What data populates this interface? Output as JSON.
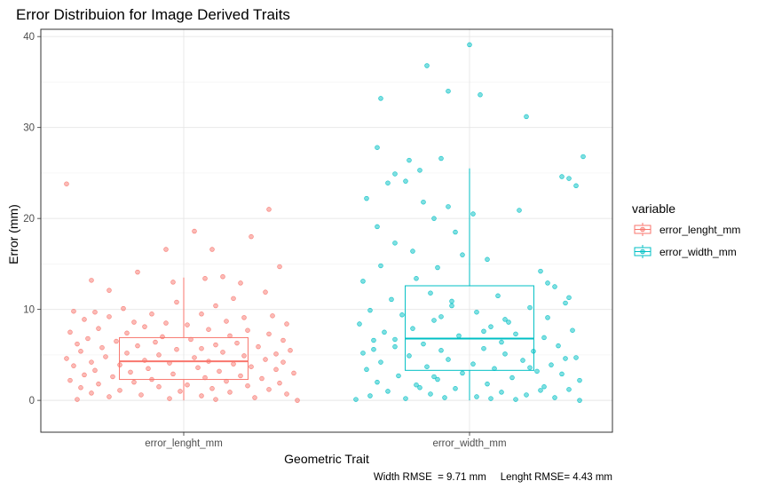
{
  "chart_data": {
    "type": "boxplot",
    "title": "Error Distribuion for Image Derived Traits",
    "xlabel": "Geometric Trait",
    "ylabel": "Error (mm)",
    "ylim": [
      -3.5,
      40.8
    ],
    "yticks": [
      0,
      10,
      20,
      30,
      40
    ],
    "categories": [
      "error_lenght_mm",
      "error_width_mm"
    ],
    "grid": true,
    "legend": {
      "title": "variable",
      "position": "right"
    },
    "caption": "Width RMSE  = 9.71 mm     Lenght RMSE= 4.43 mm",
    "series": [
      {
        "name": "error_lenght_mm",
        "color": "#F8766D",
        "box": {
          "whisker_low": 0.0,
          "q1": 2.3,
          "median": 4.3,
          "q3": 6.9,
          "whisker_high": 13.5
        },
        "points": [
          [
            -0.33,
            23.8
          ],
          [
            0.24,
            21.0
          ],
          [
            0.03,
            18.6
          ],
          [
            0.19,
            18.0
          ],
          [
            -0.05,
            16.6
          ],
          [
            0.08,
            16.6
          ],
          [
            -0.13,
            14.1
          ],
          [
            0.27,
            14.7
          ],
          [
            0.11,
            13.6
          ],
          [
            0.06,
            13.4
          ],
          [
            -0.26,
            13.2
          ],
          [
            -0.03,
            13.0
          ],
          [
            0.16,
            12.9
          ],
          [
            -0.21,
            12.1
          ],
          [
            0.23,
            11.9
          ],
          [
            0.14,
            11.2
          ],
          [
            -0.02,
            10.8
          ],
          [
            0.09,
            10.4
          ],
          [
            -0.17,
            10.1
          ],
          [
            -0.31,
            9.8
          ],
          [
            -0.25,
            9.7
          ],
          [
            -0.09,
            9.5
          ],
          [
            0.05,
            9.5
          ],
          [
            0.25,
            9.3
          ],
          [
            -0.21,
            9.2
          ],
          [
            0.17,
            9.1
          ],
          [
            -0.28,
            8.9
          ],
          [
            0.12,
            8.7
          ],
          [
            -0.14,
            8.6
          ],
          [
            -0.05,
            8.5
          ],
          [
            0.01,
            8.3
          ],
          [
            0.29,
            8.4
          ],
          [
            -0.11,
            8.1
          ],
          [
            -0.24,
            7.9
          ],
          [
            0.07,
            7.8
          ],
          [
            0.18,
            7.7
          ],
          [
            -0.32,
            7.5
          ],
          [
            -0.16,
            7.4
          ],
          [
            0.24,
            7.3
          ],
          [
            0.13,
            7.1
          ],
          [
            -0.06,
            7.0
          ],
          [
            -0.27,
            6.8
          ],
          [
            0.02,
            6.7
          ],
          [
            0.28,
            6.6
          ],
          [
            -0.19,
            6.5
          ],
          [
            -0.08,
            6.4
          ],
          [
            0.15,
            6.3
          ],
          [
            -0.3,
            6.2
          ],
          [
            0.09,
            6.1
          ],
          [
            -0.13,
            6.0
          ],
          [
            0.21,
            5.9
          ],
          [
            -0.23,
            5.8
          ],
          [
            0.05,
            5.7
          ],
          [
            -0.02,
            5.6
          ],
          [
            0.3,
            5.5
          ],
          [
            -0.29,
            5.4
          ],
          [
            0.11,
            5.3
          ],
          [
            -0.16,
            5.2
          ],
          [
            0.26,
            5.1
          ],
          [
            -0.07,
            5.0
          ],
          [
            0.17,
            4.9
          ],
          [
            -0.22,
            4.8
          ],
          [
            0.03,
            4.7
          ],
          [
            -0.33,
            4.6
          ],
          [
            0.23,
            4.5
          ],
          [
            -0.11,
            4.4
          ],
          [
            0.07,
            4.3
          ],
          [
            -0.26,
            4.2
          ],
          [
            0.28,
            4.2
          ],
          [
            -0.04,
            4.1
          ],
          [
            0.14,
            4.0
          ],
          [
            -0.18,
            3.9
          ],
          [
            -0.31,
            3.8
          ],
          [
            0.19,
            3.7
          ],
          [
            0.04,
            3.6
          ],
          [
            -0.1,
            3.5
          ],
          [
            0.26,
            3.4
          ],
          [
            -0.25,
            3.3
          ],
          [
            0.1,
            3.2
          ],
          [
            -0.15,
            3.1
          ],
          [
            0.31,
            3.0
          ],
          [
            -0.03,
            2.9
          ],
          [
            -0.28,
            2.8
          ],
          [
            0.16,
            2.7
          ],
          [
            -0.2,
            2.6
          ],
          [
            0.06,
            2.5
          ],
          [
            0.22,
            2.4
          ],
          [
            -0.09,
            2.3
          ],
          [
            -0.32,
            2.2
          ],
          [
            0.12,
            2.1
          ],
          [
            -0.14,
            2.0
          ],
          [
            0.27,
            1.9
          ],
          [
            -0.24,
            1.8
          ],
          [
            0.01,
            1.7
          ],
          [
            0.18,
            1.6
          ],
          [
            -0.07,
            1.5
          ],
          [
            -0.29,
            1.4
          ],
          [
            0.08,
            1.3
          ],
          [
            0.24,
            1.2
          ],
          [
            -0.18,
            1.1
          ],
          [
            -0.01,
            1.0
          ],
          [
            0.13,
            0.9
          ],
          [
            -0.26,
            0.8
          ],
          [
            0.29,
            0.7
          ],
          [
            -0.12,
            0.6
          ],
          [
            0.05,
            0.5
          ],
          [
            -0.21,
            0.4
          ],
          [
            0.2,
            0.3
          ],
          [
            -0.04,
            0.2
          ],
          [
            0.32,
            0.0
          ],
          [
            -0.3,
            0.1
          ],
          [
            0.09,
            0.1
          ]
        ]
      },
      {
        "name": "error_width_mm",
        "color": "#00BFC4",
        "box": {
          "whisker_low": 0.0,
          "q1": 3.3,
          "median": 6.8,
          "q3": 12.6,
          "whisker_high": 25.5
        },
        "points": [
          [
            0.0,
            39.1
          ],
          [
            -0.12,
            36.8
          ],
          [
            -0.06,
            34.0
          ],
          [
            0.03,
            33.6
          ],
          [
            -0.25,
            33.2
          ],
          [
            0.16,
            31.2
          ],
          [
            -0.26,
            27.8
          ],
          [
            0.32,
            26.8
          ],
          [
            -0.08,
            26.6
          ],
          [
            -0.17,
            26.4
          ],
          [
            -0.14,
            25.3
          ],
          [
            -0.21,
            24.9
          ],
          [
            0.26,
            24.6
          ],
          [
            0.28,
            24.4
          ],
          [
            -0.18,
            24.1
          ],
          [
            -0.23,
            23.9
          ],
          [
            0.3,
            23.6
          ],
          [
            -0.29,
            22.2
          ],
          [
            -0.13,
            21.8
          ],
          [
            -0.06,
            21.3
          ],
          [
            0.14,
            20.9
          ],
          [
            0.01,
            20.5
          ],
          [
            -0.1,
            20.0
          ],
          [
            -0.26,
            19.1
          ],
          [
            -0.04,
            18.5
          ],
          [
            -0.21,
            17.3
          ],
          [
            -0.16,
            16.4
          ],
          [
            -0.02,
            16.0
          ],
          [
            0.05,
            15.5
          ],
          [
            -0.25,
            14.8
          ],
          [
            -0.09,
            14.6
          ],
          [
            0.2,
            14.2
          ],
          [
            -0.15,
            13.4
          ],
          [
            -0.3,
            13.1
          ],
          [
            0.24,
            12.5
          ],
          [
            -0.11,
            11.8
          ],
          [
            0.08,
            11.5
          ],
          [
            -0.22,
            11.1
          ],
          [
            0.27,
            10.7
          ],
          [
            -0.05,
            10.4
          ],
          [
            0.17,
            10.2
          ],
          [
            -0.28,
            9.9
          ],
          [
            0.02,
            9.7
          ],
          [
            -0.19,
            9.4
          ],
          [
            0.22,
            9.1
          ],
          [
            -0.1,
            8.8
          ],
          [
            0.11,
            8.6
          ],
          [
            -0.31,
            8.4
          ],
          [
            0.06,
            8.1
          ],
          [
            -0.16,
            7.9
          ],
          [
            0.29,
            7.7
          ],
          [
            -0.24,
            7.5
          ],
          [
            0.13,
            7.3
          ],
          [
            -0.03,
            7.1
          ],
          [
            0.21,
            6.9
          ],
          [
            -0.27,
            6.6
          ],
          [
            0.09,
            6.4
          ],
          [
            -0.13,
            6.2
          ],
          [
            0.25,
            6.0
          ],
          [
            -0.21,
            5.9
          ],
          [
            0.04,
            5.7
          ],
          [
            -0.08,
            5.5
          ],
          [
            0.18,
            5.4
          ],
          [
            -0.3,
            5.2
          ],
          [
            0.1,
            5.1
          ],
          [
            -0.17,
            4.9
          ],
          [
            0.3,
            4.7
          ],
          [
            -0.06,
            4.5
          ],
          [
            0.15,
            4.4
          ],
          [
            -0.25,
            4.2
          ],
          [
            0.01,
            4.0
          ],
          [
            0.23,
            3.9
          ],
          [
            -0.12,
            3.7
          ],
          [
            0.07,
            3.5
          ],
          [
            -0.29,
            3.4
          ],
          [
            0.19,
            3.2
          ],
          [
            -0.02,
            3.0
          ],
          [
            0.26,
            2.9
          ],
          [
            -0.2,
            2.7
          ],
          [
            0.12,
            2.5
          ],
          [
            -0.09,
            2.3
          ],
          [
            0.31,
            2.2
          ],
          [
            -0.26,
            2.0
          ],
          [
            0.05,
            1.8
          ],
          [
            -0.15,
            1.7
          ],
          [
            0.21,
            1.5
          ],
          [
            -0.04,
            1.3
          ],
          [
            0.28,
            1.2
          ],
          [
            -0.23,
            1.0
          ],
          [
            0.09,
            0.9
          ],
          [
            -0.11,
            0.7
          ],
          [
            0.16,
            0.6
          ],
          [
            -0.28,
            0.5
          ],
          [
            0.02,
            0.4
          ],
          [
            0.24,
            0.3
          ],
          [
            -0.18,
            0.2
          ],
          [
            0.13,
            0.1
          ],
          [
            -0.07,
            0.3
          ],
          [
            0.31,
            0.0
          ],
          [
            -0.32,
            0.1
          ],
          [
            0.06,
            0.2
          ],
          [
            0.2,
            1.1
          ],
          [
            -0.1,
            2.6
          ],
          [
            0.27,
            4.6
          ],
          [
            -0.21,
            6.7
          ],
          [
            0.1,
            8.9
          ],
          [
            -0.05,
            10.9
          ],
          [
            0.22,
            12.9
          ],
          [
            -0.27,
            5.6
          ],
          [
            0.17,
            3.6
          ],
          [
            -0.14,
            1.4
          ],
          [
            0.04,
            7.6
          ],
          [
            -0.08,
            9.2
          ],
          [
            0.28,
            11.3
          ]
        ]
      }
    ]
  }
}
